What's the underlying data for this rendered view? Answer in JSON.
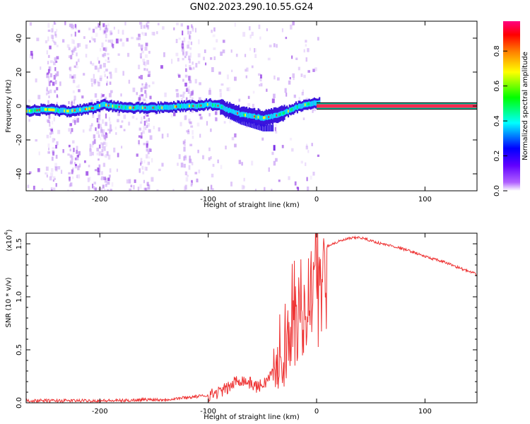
{
  "chart_data": [
    {
      "type": "heatmap",
      "title": "GN02.2023.290.10.55.G24",
      "xlabel": "Height of straight line (km)",
      "ylabel": "Frequency (Hz)",
      "xlim": [
        -268,
        148
      ],
      "ylim": [
        -50,
        50
      ],
      "x_ticks": [
        -200,
        -100,
        0,
        100
      ],
      "y_ticks": [
        -40,
        -20,
        0,
        20,
        40
      ],
      "colorbar": {
        "label": "Normalized spectral amplitude",
        "range": [
          0,
          1
        ],
        "ticks": [
          "0.0",
          "0.2",
          "0.4",
          "0.6",
          "0.8"
        ],
        "colors": [
          "#ffffff",
          "#8000ff",
          "#0000ff",
          "#00ffff",
          "#00ff00",
          "#ffff00",
          "#ff8000",
          "#ff0000",
          "#ff0080"
        ]
      },
      "ridge": {
        "x": [
          -268,
          -250,
          -230,
          -215,
          -205,
          -198,
          -190,
          -175,
          -160,
          -140,
          -125,
          -110,
          -100,
          -90,
          -80,
          -70,
          -60,
          -50,
          -40,
          -30,
          -20,
          -10,
          0,
          10,
          50,
          100,
          148
        ],
        "y": [
          -3,
          -2,
          -3,
          -2,
          -1,
          1,
          0,
          -1,
          -1,
          -1,
          0,
          0,
          1,
          0,
          -3,
          -5,
          -6,
          -7,
          -6,
          -4,
          -1,
          1,
          2,
          0,
          0,
          0,
          0
        ]
      },
      "grid": false
    },
    {
      "type": "line",
      "xlabel": "Height of straight line (km)",
      "ylabel": "SNR (10 * v/v)",
      "y_scale_label": "(x10",
      "y_scale_exp": "4",
      "xlim": [
        -268,
        148
      ],
      "ylim": [
        0,
        1.6
      ],
      "x_ticks": [
        -200,
        -100,
        0,
        100
      ],
      "y_ticks": [
        "0.0",
        "0.5",
        "1.0",
        "1.5"
      ],
      "color": "#ee3333",
      "series": [
        {
          "x": [
            -268,
            -240,
            -220,
            -200,
            -180,
            -160,
            -140,
            -120,
            -110,
            -100,
            -90,
            -80,
            -75,
            -70,
            -65,
            -60,
            -55,
            -50,
            -45,
            -40,
            -35,
            -30,
            -25,
            -20,
            -15,
            -10,
            -5,
            0,
            5,
            10,
            20,
            30,
            40,
            50,
            60,
            70,
            80,
            90,
            100,
            110,
            120,
            130,
            140,
            148
          ],
          "y": [
            0.02,
            0.02,
            0.02,
            0.02,
            0.02,
            0.03,
            0.03,
            0.05,
            0.06,
            0.07,
            0.1,
            0.15,
            0.2,
            0.22,
            0.2,
            0.18,
            0.15,
            0.17,
            0.22,
            0.3,
            0.45,
            0.6,
            0.85,
            1.0,
            1.05,
            1.1,
            1.15,
            1.25,
            1.4,
            1.48,
            1.52,
            1.55,
            1.56,
            1.53,
            1.5,
            1.48,
            1.45,
            1.42,
            1.38,
            1.35,
            1.32,
            1.28,
            1.24,
            1.21
          ]
        }
      ],
      "grid": false
    }
  ]
}
